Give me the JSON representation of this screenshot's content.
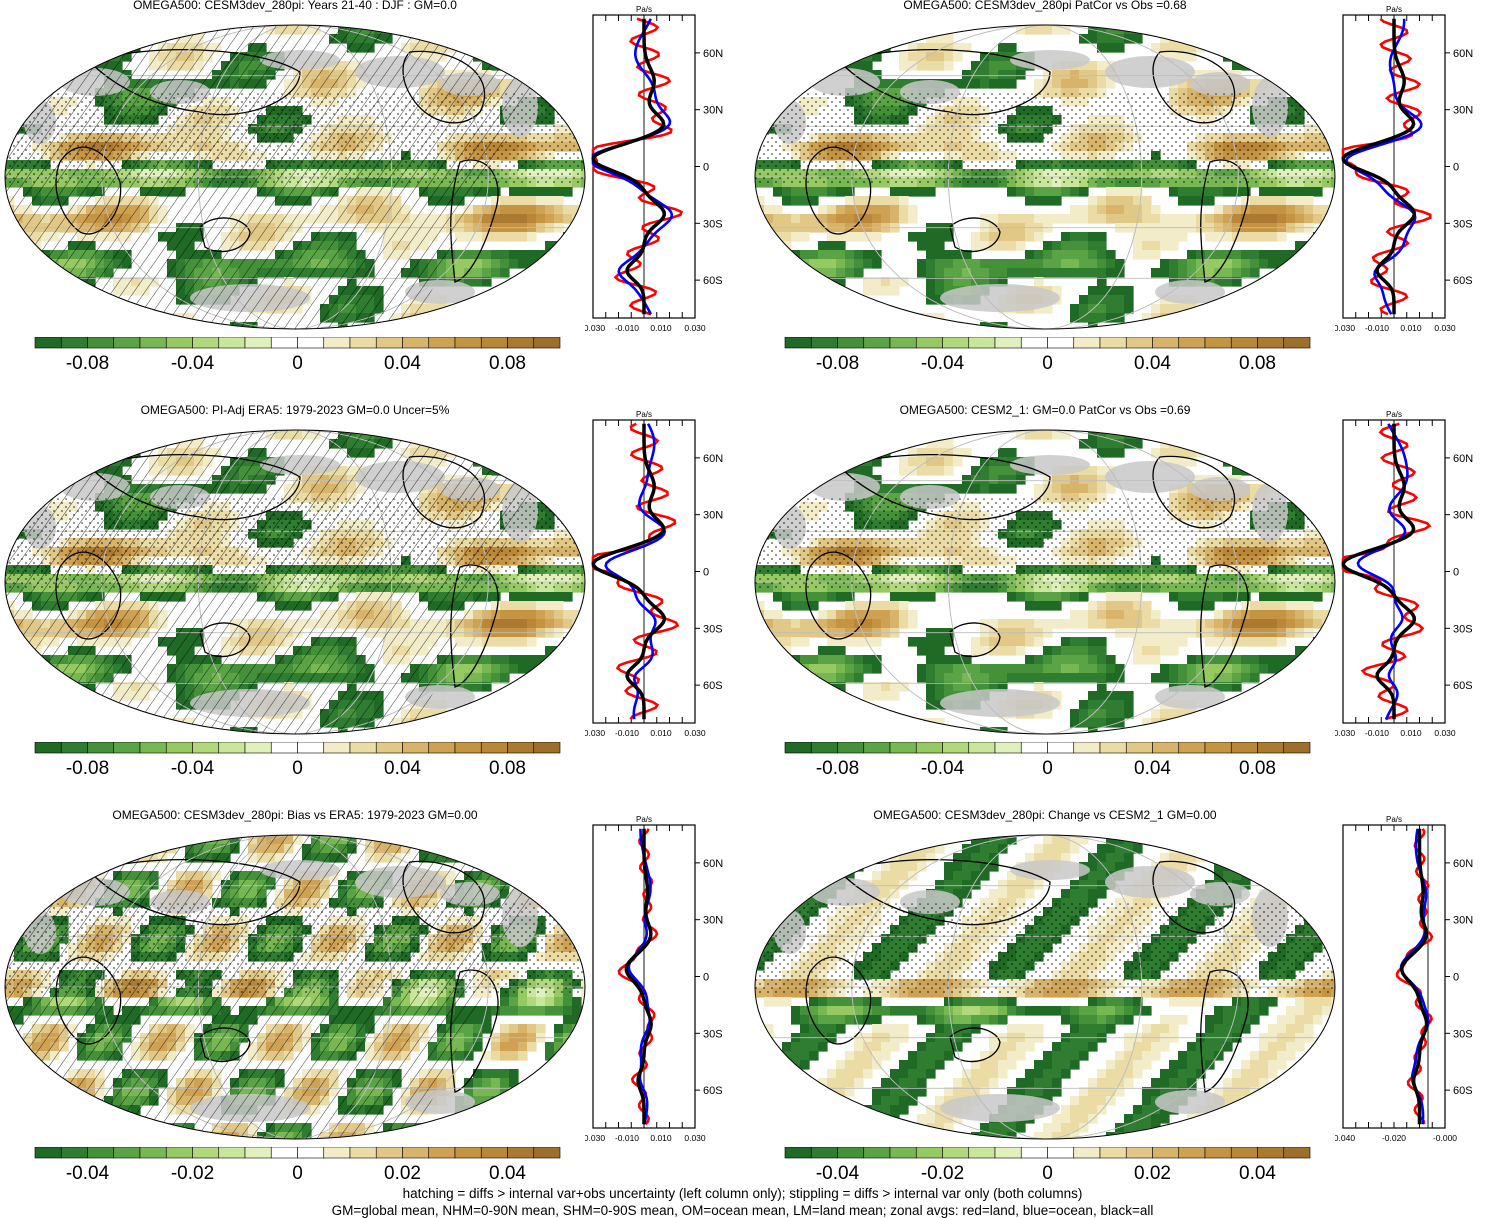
{
  "colors": {
    "negative_scale": [
      "#1f6a25",
      "#2f7d30",
      "#45913a",
      "#5ba445",
      "#77b852",
      "#96c962",
      "#b1d97c",
      "#c9e79a",
      "#e0f1bd"
    ],
    "positive_scale": [
      "#f3ecc8",
      "#ebdca5",
      "#e1c886",
      "#d8b46a",
      "#cfa253",
      "#c59442",
      "#b98737",
      "#ab7a30",
      "#9d6f2b"
    ],
    "land_mask": "#c8c8c8",
    "zonal_land": "#ff0000",
    "zonal_ocean": "#0000ff",
    "zonal_all": "#000000"
  },
  "chart_data": [
    {
      "type": "heatmap",
      "title": "OMEGA500: CESM3dev_280pi: Years 21-40 : DJF : GM=0.0",
      "colorbar": {
        "ticks": [
          "-0.08",
          "-0.04",
          "0",
          "0.04",
          "0.08"
        ],
        "range": [
          -0.1,
          0.1
        ]
      },
      "zonal_profile": {
        "unit": "Pa/s",
        "xticks": [
          "-0.030",
          "-0.010",
          "0.010",
          "0.030"
        ],
        "xlim": [
          -0.03,
          0.03
        ],
        "ylabels": [
          "60N",
          "30N",
          "0",
          "30S",
          "60S"
        ],
        "series_colors": [
          "red",
          "blue",
          "black"
        ]
      }
    },
    {
      "type": "heatmap",
      "title": "OMEGA500: CESM3dev_280pi PatCor vs Obs =0.68",
      "colorbar": {
        "ticks": [
          "-0.08",
          "-0.04",
          "0",
          "0.04",
          "0.08"
        ],
        "range": [
          -0.1,
          0.1
        ]
      },
      "zonal_profile": {
        "unit": "Pa/s",
        "xticks": [
          "-0.030",
          "-0.010",
          "0.010",
          "0.030"
        ],
        "xlim": [
          -0.03,
          0.03
        ],
        "ylabels": [
          "60N",
          "30N",
          "0",
          "30S",
          "60S"
        ],
        "series_colors": [
          "red",
          "blue",
          "black"
        ]
      }
    },
    {
      "type": "heatmap",
      "title": "OMEGA500: PI-Adj ERA5: 1979-2023 GM=0.0 Uncer=5%",
      "colorbar": {
        "ticks": [
          "-0.08",
          "-0.04",
          "0",
          "0.04",
          "0.08"
        ],
        "range": [
          -0.1,
          0.1
        ]
      },
      "zonal_profile": {
        "unit": "Pa/s",
        "xticks": [
          "-0.030",
          "-0.010",
          "0.010",
          "0.030"
        ],
        "xlim": [
          -0.03,
          0.03
        ],
        "ylabels": [
          "60N",
          "30N",
          "0",
          "30S",
          "60S"
        ],
        "series_colors": [
          "red",
          "blue",
          "black"
        ]
      }
    },
    {
      "type": "heatmap",
      "title": "OMEGA500: CESM2_1: GM=0.0 PatCor vs Obs =0.69",
      "colorbar": {
        "ticks": [
          "-0.08",
          "-0.04",
          "0",
          "0.04",
          "0.08"
        ],
        "range": [
          -0.1,
          0.1
        ]
      },
      "zonal_profile": {
        "unit": "Pa/s",
        "xticks": [
          "-0.030",
          "-0.010",
          "0.010",
          "0.030"
        ],
        "xlim": [
          -0.03,
          0.03
        ],
        "ylabels": [
          "60N",
          "30N",
          "0",
          "30S",
          "60S"
        ],
        "series_colors": [
          "red",
          "blue",
          "black"
        ]
      }
    },
    {
      "type": "heatmap",
      "title": "OMEGA500: CESM3dev_280pi: Bias vs ERA5: 1979-2023 GM=0.00",
      "colorbar": {
        "ticks": [
          "-0.04",
          "-0.02",
          "0",
          "0.02",
          "0.04"
        ],
        "range": [
          -0.05,
          0.05
        ]
      },
      "zonal_profile": {
        "unit": "Pa/s",
        "xticks": [
          "-0.030",
          "-0.010",
          "0.010",
          "0.030"
        ],
        "xlim": [
          -0.03,
          0.03
        ],
        "ylabels": [
          "60N",
          "30N",
          "0",
          "30S",
          "60S"
        ],
        "series_colors": [
          "red",
          "blue",
          "black"
        ]
      }
    },
    {
      "type": "heatmap",
      "title": "OMEGA500: CESM3dev_280pi: Change vs CESM2_1 GM=0.00",
      "colorbar": {
        "ticks": [
          "-0.04",
          "-0.02",
          "0",
          "0.02",
          "0.04"
        ],
        "range": [
          -0.05,
          0.05
        ]
      },
      "zonal_profile": {
        "unit": "Pa/s",
        "xticks": [
          "-0.040",
          "-0.020",
          "-0.000"
        ],
        "xlim": [
          -0.05,
          0.01
        ],
        "ylabels": [
          "60N",
          "30N",
          "0",
          "30S",
          "60S"
        ],
        "series_colors": [
          "red",
          "blue",
          "black"
        ]
      }
    }
  ],
  "footnote": {
    "line1": "hatching = diffs > internal var+obs uncertainty (left column only); stippling = diffs > internal var only (both columns)",
    "line2": "GM=global mean, NHM=0-90N mean, SHM=0-90S mean, OM=ocean mean, LM=land mean; zonal avgs: red=land, blue=ocean, black=all"
  }
}
